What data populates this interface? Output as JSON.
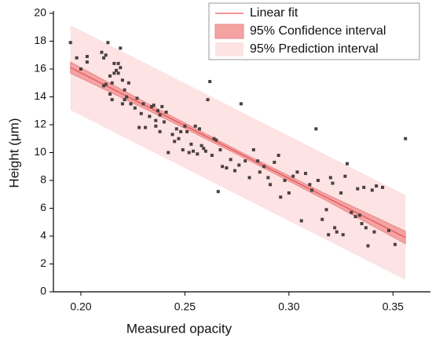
{
  "chart_data": {
    "type": "scatter",
    "x_label": "Measured opacity",
    "y_label": "Height (μm)",
    "xlim": [
      0.1868,
      0.368
    ],
    "ylim": [
      0,
      20
    ],
    "xticks": [
      {
        "value": 0.2,
        "label": "0.20"
      },
      {
        "value": 0.25,
        "label": "0.25"
      },
      {
        "value": 0.3,
        "label": "0.30"
      },
      {
        "value": 0.35,
        "label": "0.35"
      }
    ],
    "yticks": [
      0,
      2,
      4,
      6,
      8,
      10,
      12,
      14,
      16,
      18,
      20
    ],
    "legend": "top-right",
    "points": {
      "color": "#4a4040",
      "x": [
        0.195,
        0.198,
        0.2,
        0.203,
        0.203,
        0.21,
        0.211,
        0.211,
        0.212,
        0.212,
        0.213,
        0.214,
        0.214,
        0.215,
        0.215,
        0.216,
        0.216,
        0.217,
        0.218,
        0.218,
        0.219,
        0.219,
        0.22,
        0.22,
        0.221,
        0.221,
        0.222,
        0.223,
        0.224,
        0.226,
        0.227,
        0.228,
        0.229,
        0.23,
        0.231,
        0.233,
        0.234,
        0.235,
        0.236,
        0.236,
        0.237,
        0.238,
        0.238,
        0.239,
        0.24,
        0.241,
        0.242,
        0.244,
        0.245,
        0.246,
        0.247,
        0.248,
        0.249,
        0.25,
        0.251,
        0.252,
        0.253,
        0.254,
        0.255,
        0.256,
        0.257,
        0.258,
        0.259,
        0.26,
        0.261,
        0.262,
        0.263,
        0.264,
        0.265,
        0.266,
        0.267,
        0.268,
        0.27,
        0.272,
        0.274,
        0.276,
        0.277,
        0.279,
        0.281,
        0.283,
        0.285,
        0.286,
        0.288,
        0.29,
        0.291,
        0.293,
        0.295,
        0.296,
        0.298,
        0.3,
        0.302,
        0.304,
        0.306,
        0.308,
        0.31,
        0.311,
        0.313,
        0.314,
        0.316,
        0.318,
        0.319,
        0.32,
        0.321,
        0.322,
        0.323,
        0.325,
        0.326,
        0.327,
        0.328,
        0.33,
        0.332,
        0.333,
        0.334,
        0.335,
        0.336,
        0.337,
        0.338,
        0.34,
        0.341,
        0.342,
        0.345,
        0.348,
        0.351,
        0.356
      ],
      "y": [
        17.9,
        16.8,
        16.0,
        16.9,
        16.5,
        17.2,
        16.8,
        14.8,
        14.9,
        17.0,
        17.9,
        15.5,
        14.2,
        13.8,
        15.0,
        15.7,
        16.4,
        15.9,
        16.4,
        15.7,
        17.5,
        16.1,
        15.2,
        13.5,
        13.8,
        14.5,
        14.0,
        15.0,
        13.5,
        13.2,
        13.9,
        11.8,
        12.8,
        13.5,
        11.8,
        12.6,
        13.3,
        13.4,
        12.3,
        11.9,
        13.0,
        12.7,
        11.5,
        13.3,
        12.2,
        12.9,
        10.0,
        11.3,
        10.8,
        11.7,
        11.0,
        11.5,
        10.2,
        11.9,
        11.5,
        10.0,
        10.6,
        10.1,
        11.9,
        9.9,
        11.7,
        10.5,
        10.3,
        10.1,
        13.8,
        15.1,
        9.8,
        11.0,
        10.9,
        7.2,
        10.2,
        9.0,
        8.9,
        9.5,
        8.7,
        9.1,
        13.5,
        9.4,
        8.2,
        10.2,
        9.4,
        8.6,
        9.0,
        8.2,
        7.7,
        9.3,
        9.8,
        6.8,
        8.0,
        7.1,
        8.3,
        8.6,
        5.1,
        8.5,
        7.7,
        7.3,
        11.7,
        8.0,
        5.2,
        5.9,
        4.1,
        8.2,
        7.8,
        4.6,
        4.3,
        7.1,
        4.1,
        8.3,
        9.2,
        5.7,
        5.4,
        7.4,
        5.5,
        4.9,
        7.5,
        4.6,
        3.3,
        7.3,
        4.3,
        7.6,
        7.5,
        4.4,
        3.4,
        11.0
      ]
    },
    "series": [
      {
        "name": "95% Prediction interval",
        "color": "#fde3e3",
        "x": [
          0.195,
          0.2355,
          0.276,
          0.316,
          0.356
        ],
        "lower": [
          13.05,
          9.98,
          6.91,
          3.88,
          0.85
        ],
        "upper": [
          19.15,
          16.08,
          13.01,
          9.98,
          6.95
        ]
      },
      {
        "name": "95% Confidence interval",
        "color": "#f4a3a3",
        "x": [
          0.195,
          0.2355,
          0.276,
          0.316,
          0.356
        ],
        "lower": [
          15.7,
          12.81,
          9.81,
          6.71,
          3.45
        ],
        "upper": [
          16.5,
          13.25,
          10.11,
          7.15,
          4.35
        ]
      },
      {
        "name": "Linear fit",
        "color": "#e8565a",
        "x": [
          0.195,
          0.356
        ],
        "values": [
          16.1,
          3.9
        ]
      }
    ]
  }
}
